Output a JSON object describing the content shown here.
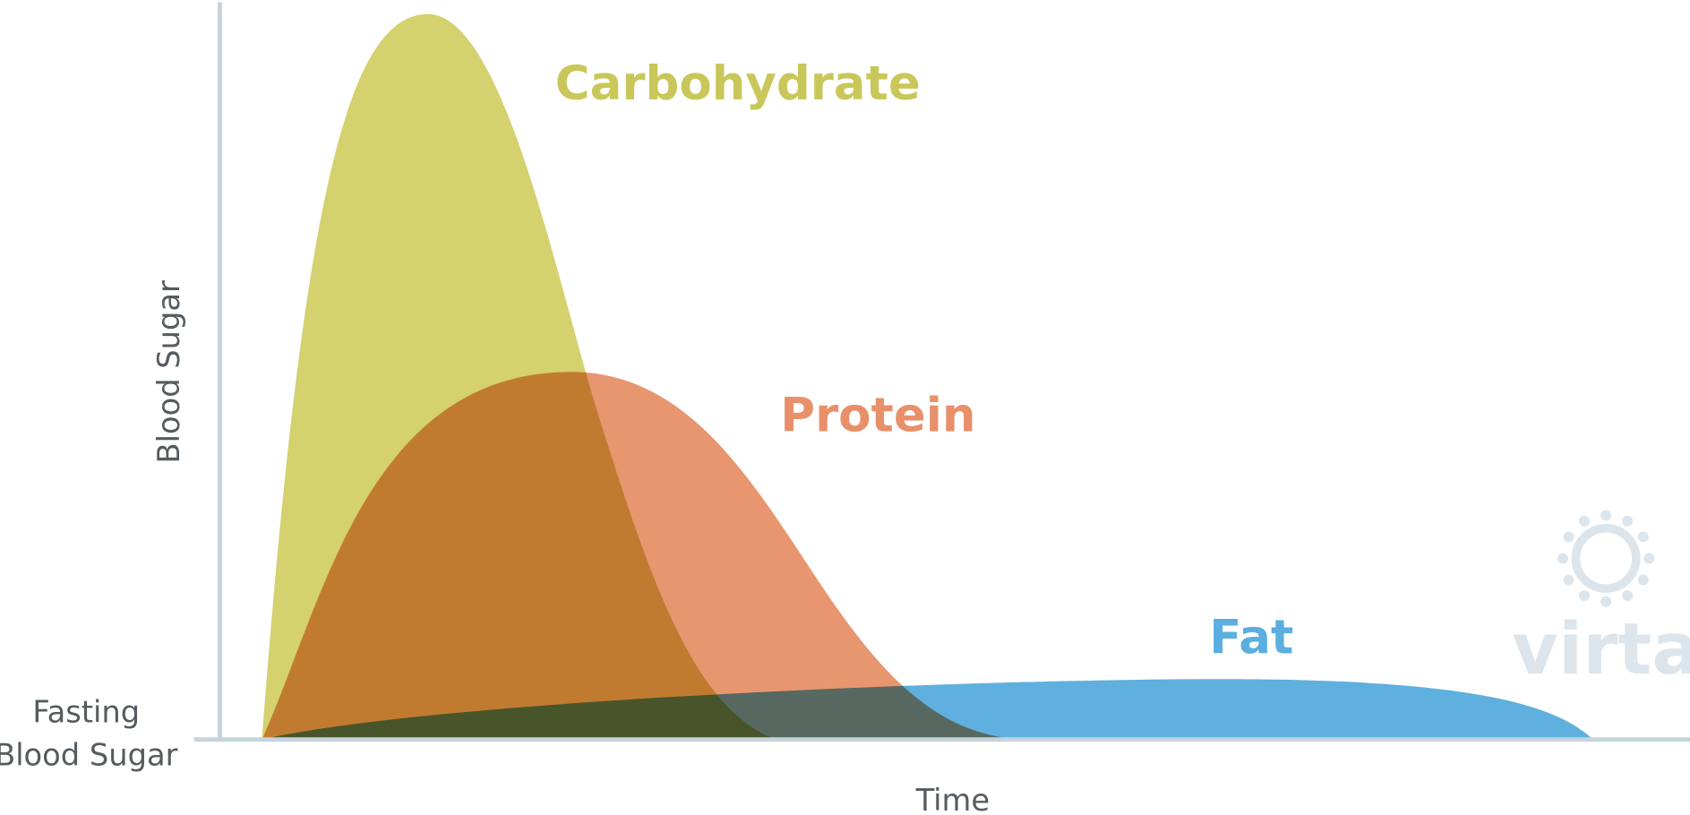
{
  "labels": {
    "carbohydrate": "Carbohydrate",
    "protein": "Protein",
    "fat": "Fat"
  },
  "axes": {
    "y": "Blood Sugar",
    "x": "Time",
    "baseline": [
      "Fasting",
      "Blood Sugar"
    ]
  },
  "logo": "virta"
}
